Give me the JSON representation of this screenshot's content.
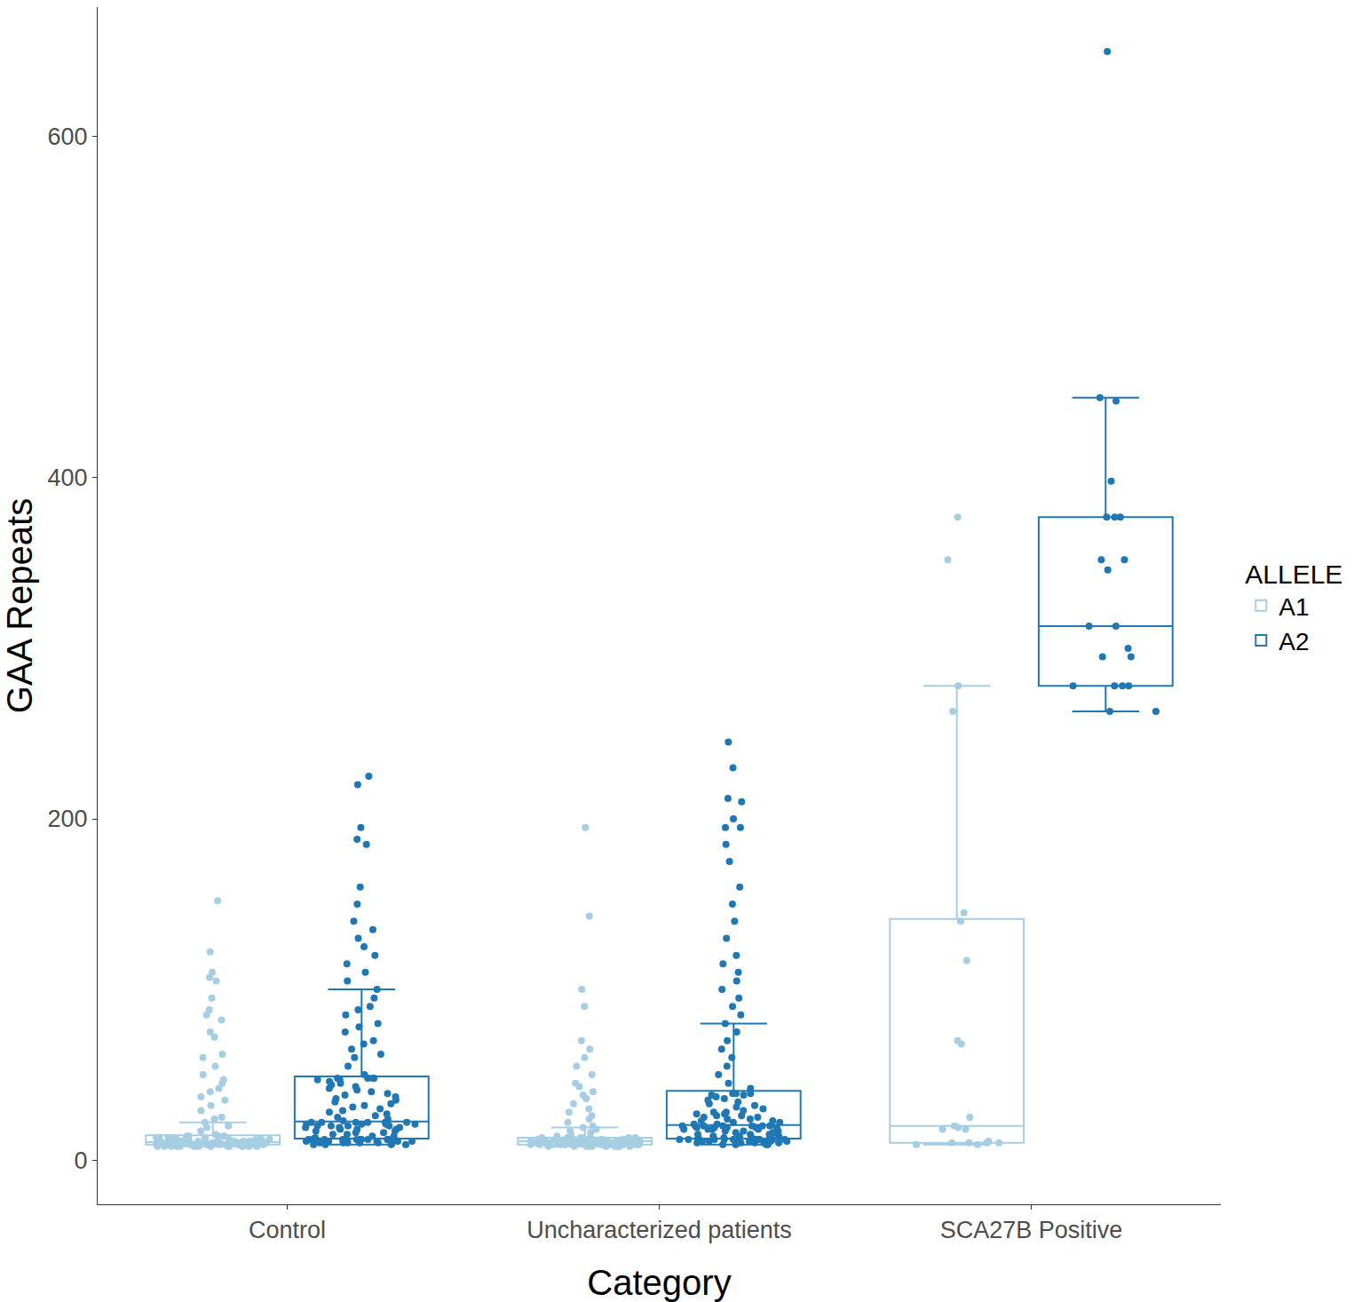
{
  "chart_data": {
    "type": "box",
    "x_label": "Category",
    "y_label": "GAA Repeats",
    "legend_title": "ALLELE",
    "legend": "right",
    "grid": false,
    "categories": [
      "Control",
      "Uncharacterized patients",
      "SCA27B Positive"
    ],
    "ylim": [
      -26,
      676
    ],
    "yticks": [
      0,
      200,
      400,
      600
    ],
    "series": [
      {
        "name": "A1",
        "color": "#a6cee3",
        "values": [
          [
            8,
            8,
            8,
            8,
            8,
            8,
            8,
            8,
            8,
            8,
            8,
            8,
            8,
            8,
            8,
            9,
            9,
            9,
            9,
            9,
            9,
            9,
            9,
            9,
            9,
            9,
            9,
            9,
            9,
            9,
            9,
            9,
            9,
            9,
            9,
            9,
            9,
            9,
            9,
            9,
            9,
            9,
            9,
            9,
            9,
            10,
            10,
            10,
            10,
            10,
            10,
            10,
            10,
            10,
            10,
            10,
            10,
            10,
            10,
            10,
            11,
            11,
            11,
            11,
            11,
            11,
            11,
            11,
            11,
            11,
            12,
            12,
            12,
            12,
            12,
            12,
            12,
            12,
            13,
            13,
            13,
            13,
            13,
            13,
            13,
            14,
            14,
            14,
            14,
            14,
            15,
            17,
            19,
            20,
            22,
            24,
            25,
            29,
            32,
            35,
            37,
            40,
            42,
            45,
            47,
            50,
            55,
            60,
            62,
            72,
            75,
            82,
            85,
            88,
            95,
            105,
            107,
            110,
            122,
            152
          ],
          [
            8,
            8,
            8,
            8,
            8,
            8,
            8,
            8,
            8,
            8,
            9,
            9,
            9,
            9,
            9,
            9,
            9,
            9,
            9,
            9,
            9,
            9,
            9,
            9,
            9,
            9,
            9,
            9,
            9,
            9,
            9,
            9,
            9,
            9,
            9,
            10,
            10,
            10,
            10,
            10,
            10,
            10,
            10,
            10,
            10,
            10,
            10,
            10,
            10,
            10,
            10,
            10,
            10,
            10,
            10,
            10,
            10,
            10,
            10,
            10,
            11,
            11,
            11,
            11,
            11,
            11,
            11,
            11,
            11,
            11,
            11,
            11,
            11,
            11,
            11,
            12,
            12,
            12,
            12,
            12,
            12,
            12,
            12,
            12,
            12,
            12,
            12,
            13,
            13,
            13,
            13,
            13,
            13,
            13,
            13,
            14,
            15,
            16,
            17,
            18,
            19,
            20,
            22,
            24,
            26,
            28,
            30,
            33,
            36,
            38,
            40,
            43,
            45,
            50,
            55,
            60,
            65,
            70,
            90,
            100,
            143,
            195
          ],
          [
            377,
            352,
            278,
            263,
            145,
            140,
            117,
            70,
            68,
            25,
            20,
            19,
            18,
            18,
            11,
            10,
            10,
            10,
            9,
            9,
            10
          ]
        ]
      },
      {
        "name": "A2",
        "color": "#1f78b4",
        "values": [
          [
            9,
            9,
            9,
            9,
            10,
            10,
            10,
            10,
            10,
            10,
            11,
            11,
            11,
            11,
            11,
            11,
            11,
            12,
            12,
            12,
            12,
            12,
            12,
            12,
            12,
            12,
            12,
            12,
            12,
            12,
            13,
            13,
            14,
            14,
            15,
            15,
            16,
            16,
            17,
            17,
            18,
            18,
            18,
            19,
            19,
            19,
            20,
            20,
            20,
            20,
            21,
            21,
            21,
            21,
            22,
            22,
            22,
            22,
            22,
            22,
            23,
            24,
            25,
            26,
            27,
            28,
            29,
            30,
            31,
            32,
            33,
            34,
            35,
            36,
            37,
            38,
            39,
            40,
            41,
            42,
            43,
            44,
            45,
            46,
            47,
            47,
            48,
            48,
            48,
            48,
            50,
            55,
            60,
            62,
            65,
            68,
            70,
            75,
            78,
            80,
            85,
            88,
            90,
            95,
            100,
            105,
            110,
            115,
            120,
            125,
            130,
            135,
            140,
            150,
            160,
            220,
            185,
            188,
            195,
            225
          ],
          [
            9,
            9,
            9,
            9,
            10,
            10,
            10,
            10,
            10,
            10,
            11,
            11,
            11,
            11,
            11,
            11,
            12,
            12,
            12,
            12,
            12,
            12,
            12,
            12,
            12,
            12,
            12,
            12,
            12,
            12,
            13,
            13,
            14,
            14,
            14,
            15,
            15,
            15,
            16,
            16,
            16,
            17,
            17,
            17,
            18,
            18,
            18,
            18,
            19,
            19,
            19,
            19,
            19,
            20,
            20,
            20,
            20,
            20,
            20,
            20,
            21,
            21,
            22,
            22,
            23,
            23,
            24,
            24,
            25,
            25,
            26,
            26,
            27,
            27,
            28,
            28,
            29,
            30,
            31,
            32,
            33,
            34,
            35,
            36,
            37,
            38,
            38,
            39,
            39,
            39,
            42,
            45,
            50,
            55,
            60,
            65,
            70,
            75,
            80,
            85,
            90,
            95,
            100,
            105,
            110,
            115,
            120,
            130,
            140,
            150,
            160,
            175,
            185,
            195,
            195,
            200,
            210,
            212,
            230,
            245
          ],
          [
            650,
            447,
            445,
            398,
            377,
            377,
            377,
            352,
            352,
            346,
            313,
            313,
            300,
            295,
            295,
            278,
            278,
            278,
            278,
            263,
            263
          ]
        ]
      }
    ]
  }
}
